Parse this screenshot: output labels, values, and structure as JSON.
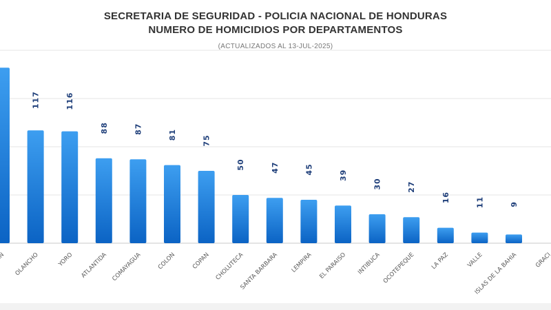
{
  "header": {
    "title_line1": "SECRETARIA DE SEGURIDAD - POLICIA NACIONAL DE HONDURAS",
    "title_line2": "NUMERO DE HOMICIDIOS POR DEPARTAMENTOS",
    "subtitle": "(ACTUALIZADOS AL 13-JUL-2025)"
  },
  "colors": {
    "bar_top": "#3d9ef0",
    "bar_bottom": "#0b63c4",
    "value_label": "#1f3f7a",
    "category_label": "#555555",
    "grid": "#e6e6e6",
    "axis": "#c8c8c8"
  },
  "chart_data": {
    "type": "bar",
    "title": "SECRETARIA DE SEGURIDAD - POLICIA NACIONAL DE HONDURAS / NUMERO DE HOMICIDIOS POR DEPARTAMENTOS",
    "subtitle": "(ACTUALIZADOS AL 13-JUL-2025)",
    "xlabel": "",
    "ylabel": "",
    "grid": true,
    "ylim": [
      0,
      200
    ],
    "categories": [
      "O MORAZAN",
      "OLANCHO",
      "YORO",
      "ATLANTIDA",
      "COMAYAGUA",
      "COLON",
      "COPAN",
      "CHOLUTECA",
      "SANTA BARBARA",
      "LEMPIRA",
      "EL PARAISO",
      "INTIBUCA",
      "OCOTEPEQUE",
      "LA PAZ",
      "VALLE",
      "ISLAS DE LA BAHIA",
      "GRACI"
    ],
    "values": [
      null,
      117,
      116,
      88,
      87,
      81,
      75,
      50,
      47,
      45,
      39,
      30,
      27,
      16,
      11,
      9,
      null
    ],
    "bar_heights_estimated": [
      182,
      117,
      116,
      88,
      87,
      81,
      75,
      50,
      47,
      45,
      39,
      30,
      27,
      16,
      11,
      9,
      null
    ],
    "value_labels": [
      "",
      "117",
      "116",
      "88",
      "87",
      "81",
      "75",
      "50",
      "47",
      "45",
      "39",
      "30",
      "27",
      "16",
      "11",
      "9",
      ""
    ]
  }
}
